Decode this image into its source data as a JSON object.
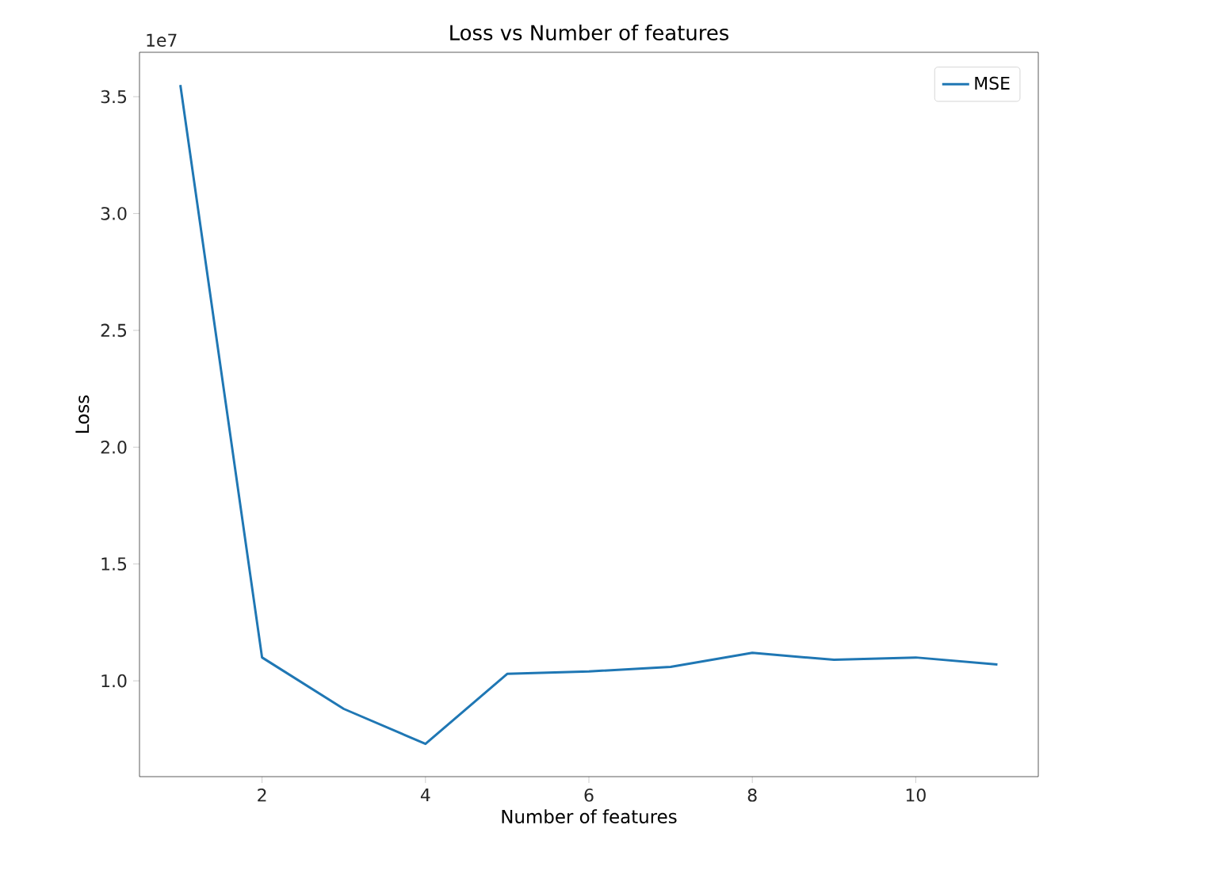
{
  "chart_data": {
    "type": "line",
    "title": "Loss vs Number of features",
    "xlabel": "Number of features",
    "ylabel": "Loss",
    "annotations": [
      "1e7"
    ],
    "x": [
      1,
      2,
      3,
      4,
      5,
      6,
      7,
      8,
      9,
      10,
      11
    ],
    "series": [
      {
        "name": "MSE",
        "color": "#1f77b4",
        "values": [
          3.55,
          1.1,
          0.88,
          0.73,
          1.03,
          1.04,
          1.06,
          1.12,
          1.09,
          1.1,
          1.07
        ]
      }
    ],
    "xlim": [
      0.5,
      11.5
    ],
    "xticks": [
      2,
      4,
      6,
      8,
      10
    ],
    "ylim": [
      0.59,
      3.69
    ],
    "yticks": [
      {
        "value": 1.0,
        "label": "1.0"
      },
      {
        "value": 1.5,
        "label": "1.5"
      },
      {
        "value": 2.0,
        "label": "2.0"
      },
      {
        "value": 2.5,
        "label": "2.5"
      },
      {
        "value": 3.0,
        "label": "3.0"
      },
      {
        "value": 3.5,
        "label": "3.5"
      }
    ],
    "legend": "top right",
    "grid": false,
    "marker": "none",
    "line_style": "solid"
  }
}
